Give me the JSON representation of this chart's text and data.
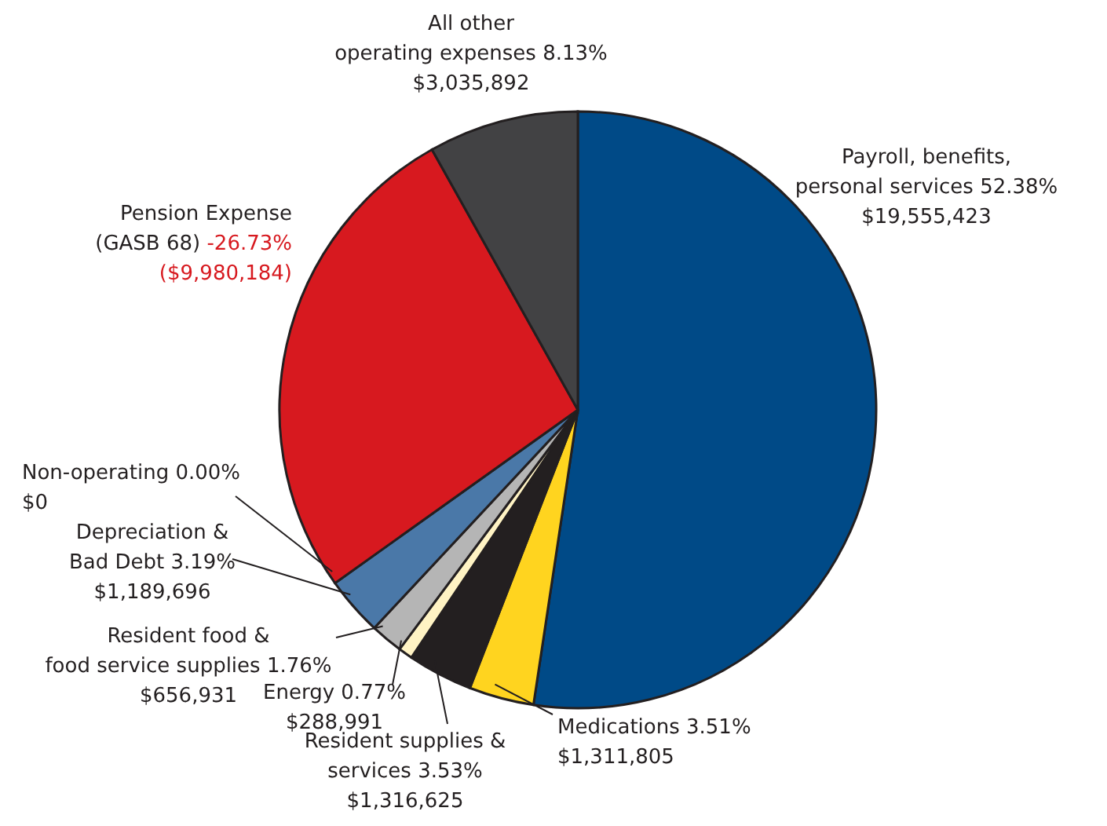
{
  "chart_data": {
    "type": "pie",
    "categories": [
      "Payroll, benefits, personal services",
      "Medications",
      "Resident supplies & services",
      "Energy",
      "Resident food & food service supplies",
      "Depreciation & Bad Debt",
      "Non-operating",
      "Pension Expense (GASB 68)",
      "All other operating expenses"
    ],
    "values": [
      19555423,
      1311805,
      1316625,
      288991,
      656931,
      1189696,
      0,
      9980184,
      3035892
    ],
    "value_labels": [
      "52.38% $19,555,423",
      "3.51% $1,311,805",
      "3.53% $1,316,625",
      "0.77% $288,991",
      "1.76% $656,931",
      "3.19% $1,189,696",
      "0.00% $0",
      "-26.73% ($9,980,184)",
      "8.13% $3,035,892"
    ],
    "colors": [
      "#004a87",
      "#ffd41f",
      "#231f20",
      "#fff3c4",
      "#b5b5b5",
      "#4a78a8",
      "#8c8c8c",
      "#d7191f",
      "#424244"
    ]
  }
}
